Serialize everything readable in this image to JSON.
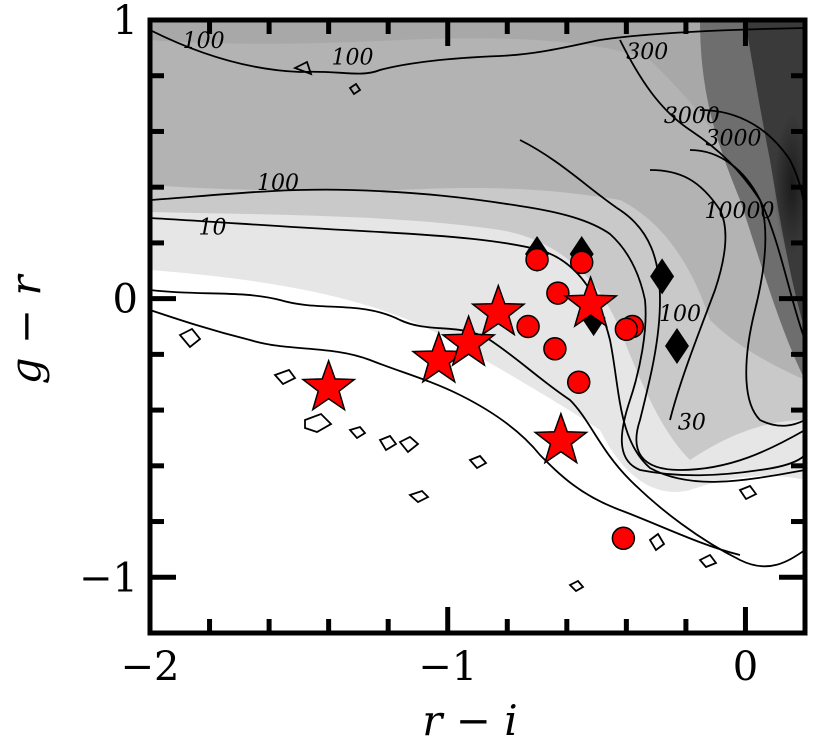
{
  "chart_data": {
    "type": "scatter",
    "title": "",
    "xlabel": "r − i",
    "ylabel": "g − r",
    "xlim": [
      -2.0,
      0.2
    ],
    "ylim": [
      -1.2,
      1.0
    ],
    "xticks": [
      {
        "value": -2,
        "label": "−2"
      },
      {
        "value": -1,
        "label": "−1"
      },
      {
        "value": 0,
        "label": "0"
      }
    ],
    "yticks": [
      {
        "value": 1,
        "label": "1"
      },
      {
        "value": 0,
        "label": "0"
      },
      {
        "value": -1,
        "label": "−1"
      }
    ],
    "background": "grayscale 2D density histogram with contour lines",
    "contour_labels": [
      {
        "text": "100",
        "x": -1.82,
        "y": 0.9
      },
      {
        "text": "100",
        "x": -1.32,
        "y": 0.84
      },
      {
        "text": "100",
        "x": -1.57,
        "y": 0.39
      },
      {
        "text": "10",
        "x": -1.79,
        "y": 0.23
      },
      {
        "text": "300",
        "x": -0.33,
        "y": 0.86
      },
      {
        "text": "3000",
        "x": -0.18,
        "y": 0.63
      },
      {
        "text": "3000",
        "x": -0.04,
        "y": 0.55
      },
      {
        "text": "10000",
        "x": -0.02,
        "y": 0.29
      },
      {
        "text": "100",
        "x": -0.22,
        "y": -0.08
      },
      {
        "text": "30",
        "x": -0.18,
        "y": -0.47
      }
    ],
    "series": [
      {
        "marker": "star",
        "color": "#ff0000",
        "points": [
          {
            "x": -1.4,
            "y": -0.32
          },
          {
            "x": -1.03,
            "y": -0.22
          },
          {
            "x": -0.93,
            "y": -0.16
          },
          {
            "x": -0.83,
            "y": -0.05
          },
          {
            "x": -0.62,
            "y": -0.51
          },
          {
            "x": -0.52,
            "y": -0.02
          }
        ]
      },
      {
        "marker": "circle",
        "color": "#ff0000",
        "points": [
          {
            "x": -0.7,
            "y": 0.14
          },
          {
            "x": -0.55,
            "y": 0.13
          },
          {
            "x": -0.63,
            "y": 0.02
          },
          {
            "x": -0.73,
            "y": -0.1
          },
          {
            "x": -0.64,
            "y": -0.18
          },
          {
            "x": -0.38,
            "y": -0.1
          },
          {
            "x": -0.4,
            "y": -0.11
          },
          {
            "x": -0.56,
            "y": -0.3
          },
          {
            "x": -0.41,
            "y": -0.86
          }
        ]
      },
      {
        "marker": "diamond",
        "color": "#000000",
        "points": [
          {
            "x": -0.7,
            "y": 0.16
          },
          {
            "x": -0.55,
            "y": 0.16
          },
          {
            "x": -0.51,
            "y": -0.07
          },
          {
            "x": -0.28,
            "y": 0.08
          },
          {
            "x": -0.23,
            "y": -0.17
          }
        ]
      }
    ]
  }
}
